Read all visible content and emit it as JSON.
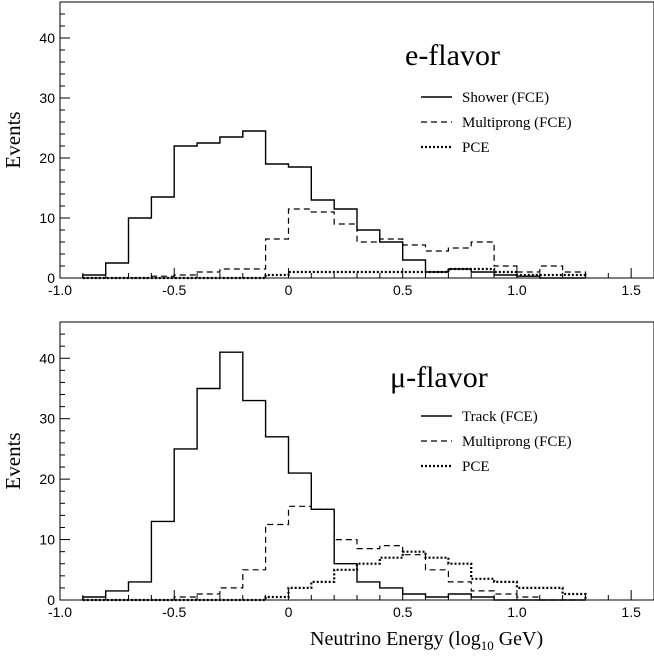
{
  "chart_data": [
    {
      "type": "histogram",
      "title": "e-flavor",
      "ylabel": "Events",
      "xlabel": "",
      "xlim": [
        -1.0,
        1.6
      ],
      "ylim": [
        0,
        46
      ],
      "xticks": [
        "-1.0",
        "-0.5",
        "0",
        "0.5",
        "1.0",
        "1.5"
      ],
      "yticks": [
        "0",
        "10",
        "20",
        "30",
        "40"
      ],
      "bin_edges": [
        -0.9,
        -0.8,
        -0.7,
        -0.6,
        -0.5,
        -0.4,
        -0.3,
        -0.2,
        -0.1,
        0.0,
        0.1,
        0.2,
        0.3,
        0.4,
        0.5,
        0.6,
        0.7,
        0.8,
        0.9,
        1.0,
        1.1,
        1.2,
        1.3
      ],
      "series": [
        {
          "name": "Shower (FCE)",
          "style": "solid",
          "values": [
            0.5,
            2.5,
            10,
            13.5,
            22,
            22.5,
            23.5,
            24.5,
            19,
            18.5,
            13,
            11.5,
            8,
            6,
            3,
            1,
            1.5,
            1,
            0.5,
            0.3,
            0,
            0
          ]
        },
        {
          "name": "Multiprong (FCE)",
          "style": "dashed",
          "values": [
            0,
            0,
            0,
            0.3,
            0.5,
            1,
            1.5,
            1.5,
            6.5,
            11.5,
            11,
            9,
            6,
            6.5,
            5.5,
            4.5,
            5,
            6,
            2,
            1,
            2,
            1
          ]
        },
        {
          "name": "PCE",
          "style": "dotted",
          "values": [
            0,
            0,
            0,
            0,
            0,
            0,
            0,
            0,
            0.5,
            1,
            1,
            1,
            1,
            1,
            1,
            1,
            1.5,
            1.5,
            1,
            0.5,
            0.5,
            0.5
          ]
        }
      ],
      "legend_position": "top-right"
    },
    {
      "type": "histogram",
      "title": "μ-flavor",
      "ylabel": "Events",
      "xlabel": "Neutrino Energy  (log",
      "xlabel_sub": "10",
      "xlabel_tail": " GeV)",
      "xlim": [
        -1.0,
        1.6
      ],
      "ylim": [
        0,
        46
      ],
      "xticks": [
        "-1.0",
        "-0.5",
        "0",
        "0.5",
        "1.0",
        "1.5"
      ],
      "yticks": [
        "0",
        "10",
        "20",
        "30",
        "40"
      ],
      "bin_edges": [
        -0.9,
        -0.8,
        -0.7,
        -0.6,
        -0.5,
        -0.4,
        -0.3,
        -0.2,
        -0.1,
        0.0,
        0.1,
        0.2,
        0.3,
        0.4,
        0.5,
        0.6,
        0.7,
        0.8,
        0.9,
        1.0,
        1.1,
        1.2,
        1.3
      ],
      "series": [
        {
          "name": "Track (FCE)",
          "style": "solid",
          "values": [
            0.5,
            1.5,
            3,
            13,
            25,
            35,
            41,
            33,
            27,
            21,
            15,
            6,
            3,
            2,
            1,
            0.5,
            1,
            0.5,
            0,
            0,
            0,
            0
          ]
        },
        {
          "name": "Multiprong (FCE)",
          "style": "dashed",
          "values": [
            0,
            0,
            0,
            0,
            0.5,
            1,
            2,
            5,
            12.5,
            15.5,
            15,
            10,
            8.5,
            9,
            7.5,
            5,
            3,
            1.5,
            1,
            0.5,
            0,
            0
          ]
        },
        {
          "name": "PCE",
          "style": "dotted",
          "values": [
            0,
            0,
            0,
            0,
            0,
            0,
            0,
            0,
            0.5,
            2,
            3,
            5,
            6,
            7,
            8,
            7,
            6,
            3.5,
            3,
            2,
            2,
            1
          ]
        }
      ],
      "legend_position": "top-right"
    }
  ]
}
